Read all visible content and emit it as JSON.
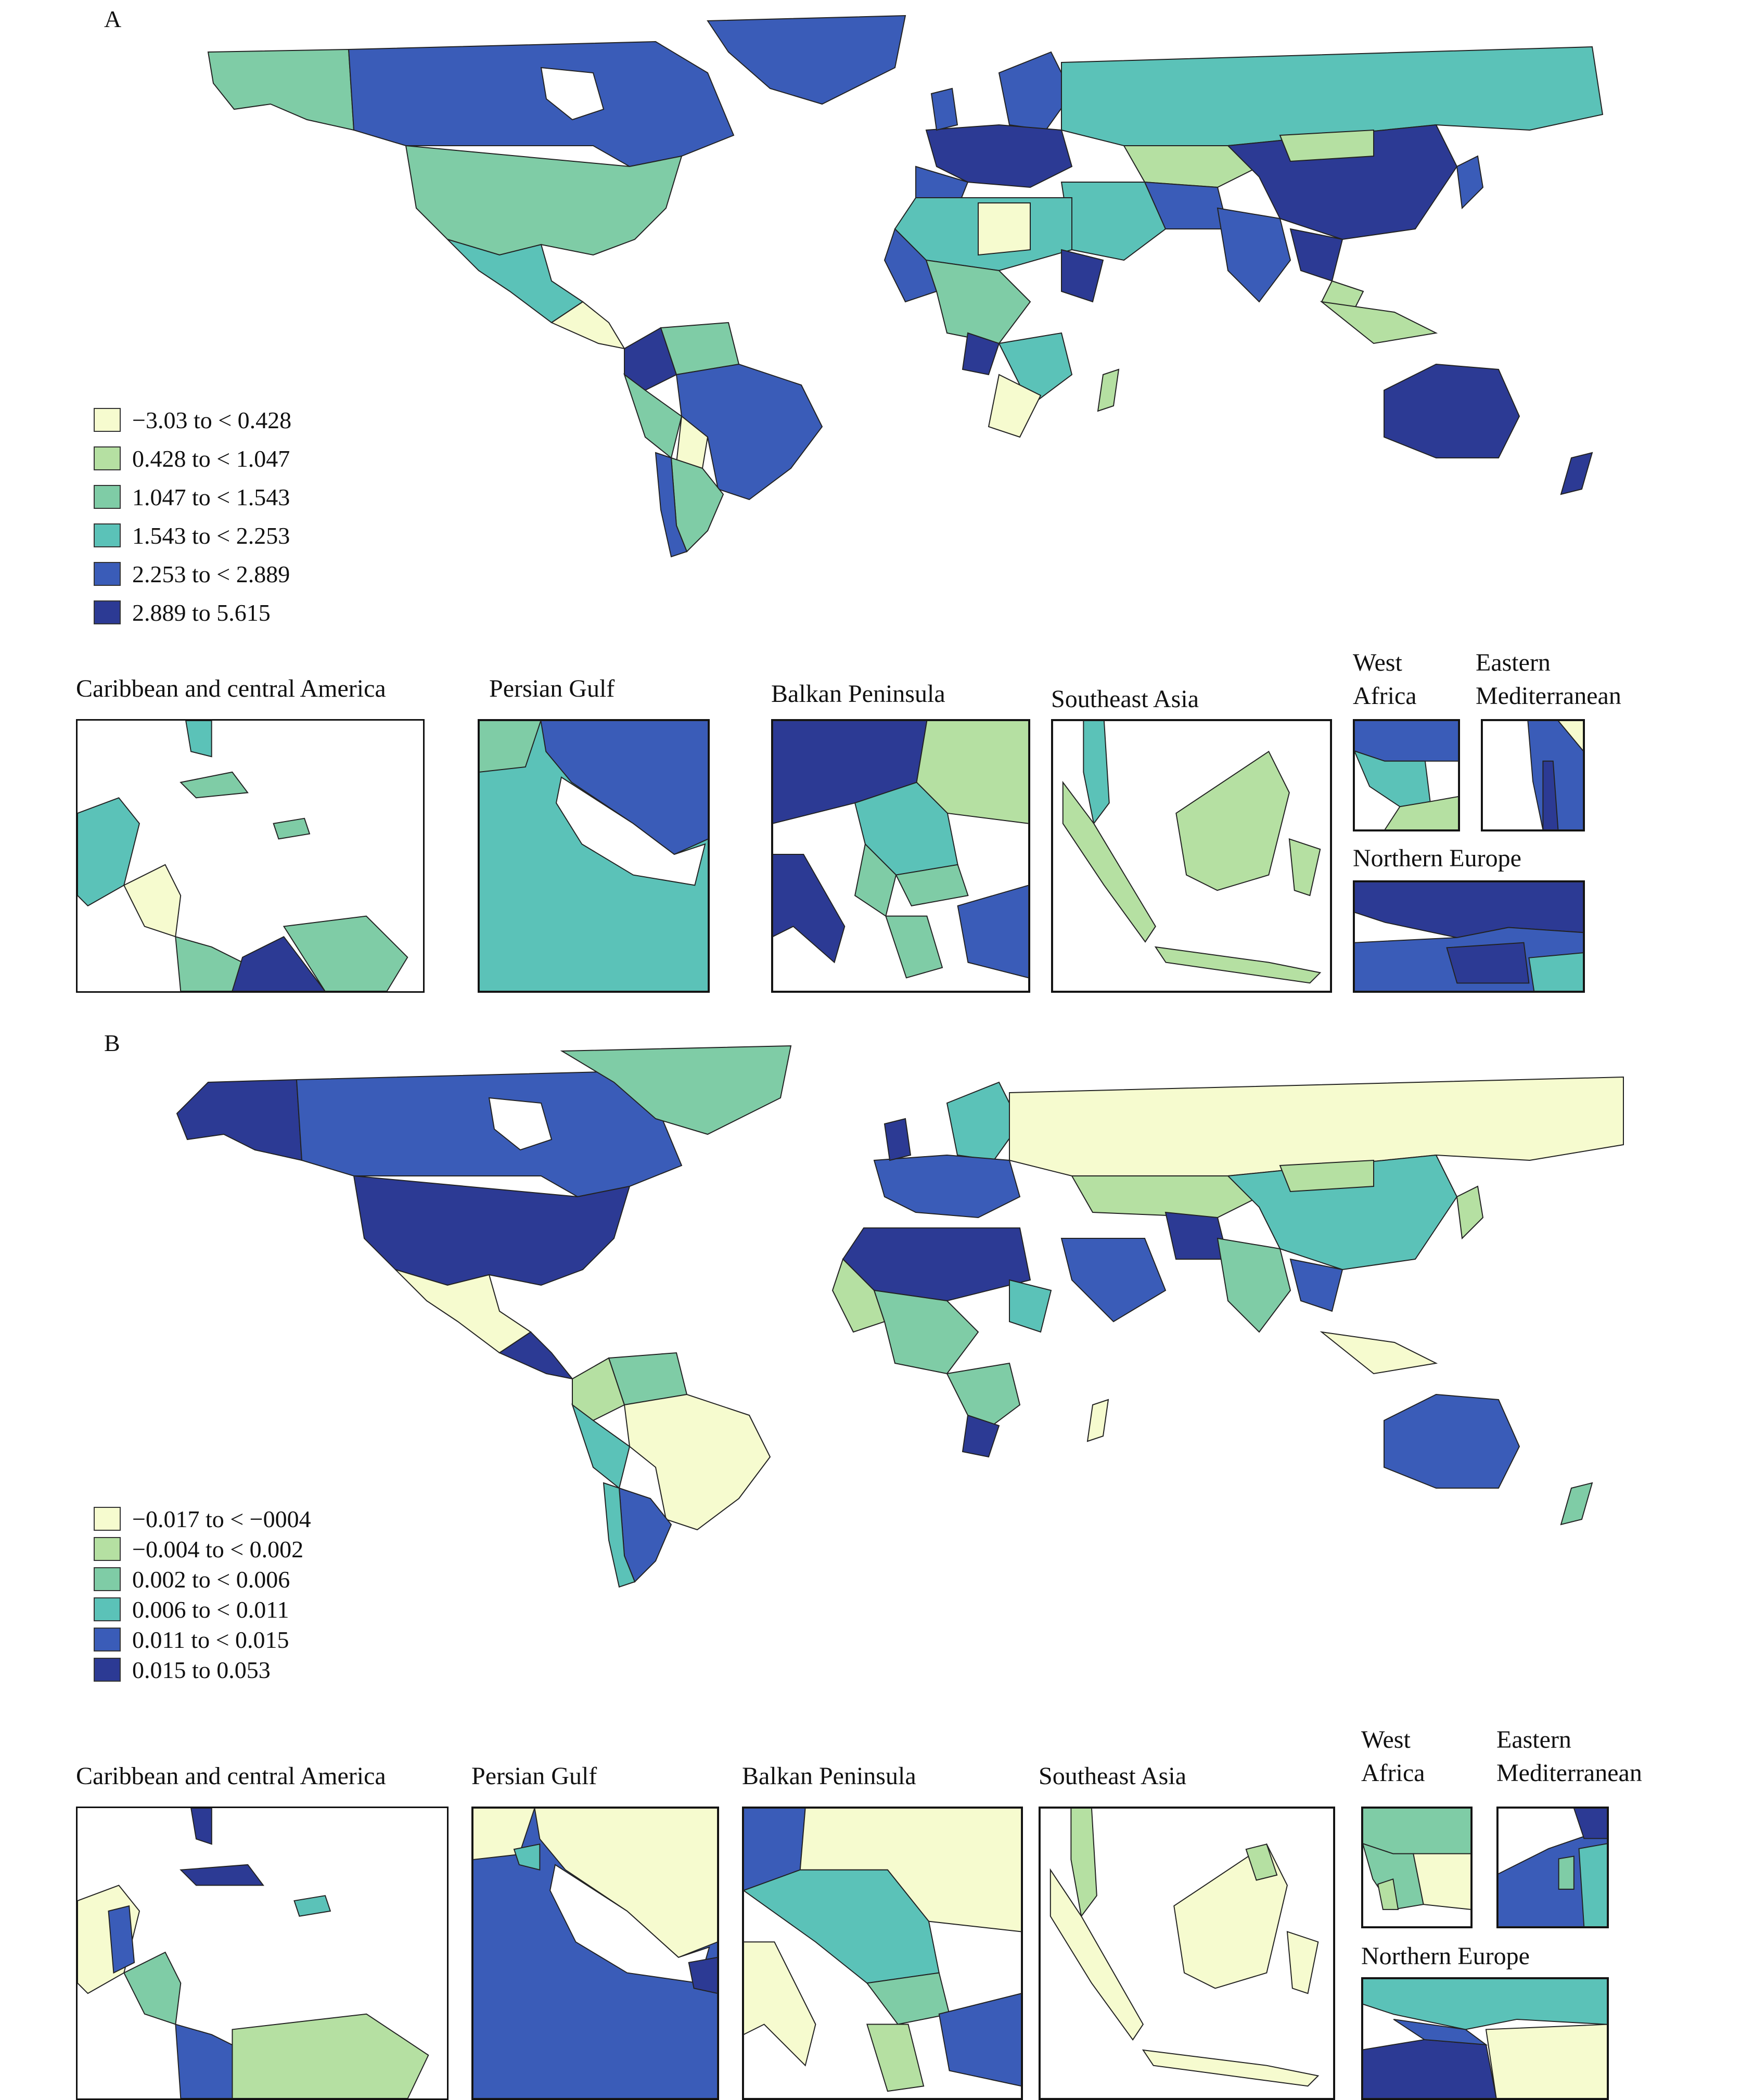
{
  "colors": {
    "c1": "#f6fbcf",
    "c2": "#b5e0a2",
    "c3": "#7fcca6",
    "c4": "#5bc2b8",
    "c5": "#3a5cb8",
    "c6": "#2c3a94"
  },
  "panels": [
    {
      "letter": "A",
      "legend": [
        {
          "label": "−3.03 to < 0.428",
          "color": "#f6fbcf"
        },
        {
          "label": "0.428 to < 1.047",
          "color": "#b5e0a2"
        },
        {
          "label": "1.047 to < 1.543",
          "color": "#7fcca6"
        },
        {
          "label": "1.543 to < 2.253",
          "color": "#5bc2b8"
        },
        {
          "label": "2.253 to < 2.889",
          "color": "#3a5cb8"
        },
        {
          "label": "2.889 to 5.615",
          "color": "#2c3a94"
        }
      ],
      "insets": [
        {
          "title": "Caribbean and central America"
        },
        {
          "title": "Persian Gulf"
        },
        {
          "title": "Balkan Peninsula"
        },
        {
          "title": "Southeast Asia"
        },
        {
          "title": "West\nAfrica"
        },
        {
          "title": "Eastern\nMediterranean"
        },
        {
          "title": "Northern Europe"
        }
      ]
    },
    {
      "letter": "B",
      "legend": [
        {
          "label": "−0.017 to < −0004",
          "color": "#f6fbcf"
        },
        {
          "label": "−0.004 to < 0.002",
          "color": "#b5e0a2"
        },
        {
          "label": "0.002 to < 0.006",
          "color": "#7fcca6"
        },
        {
          "label": "0.006 to < 0.011",
          "color": "#5bc2b8"
        },
        {
          "label": "0.011 to < 0.015",
          "color": "#3a5cb8"
        },
        {
          "label": "0.015 to 0.053",
          "color": "#2c3a94"
        }
      ],
      "insets": [
        {
          "title": "Caribbean and central America"
        },
        {
          "title": "Persian Gulf"
        },
        {
          "title": "Balkan Peninsula"
        },
        {
          "title": "Southeast Asia"
        },
        {
          "title": "West\nAfrica"
        },
        {
          "title": "Eastern\nMediterranean"
        },
        {
          "title": "Northern Europe"
        }
      ]
    }
  ]
}
